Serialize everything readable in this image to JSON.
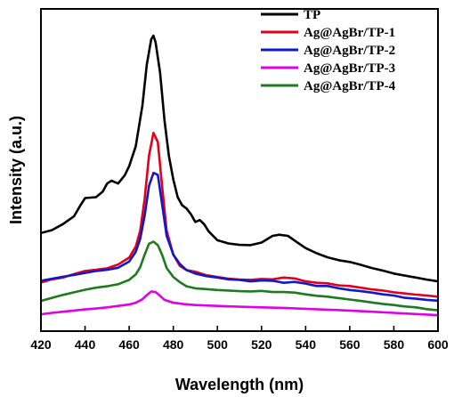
{
  "chart_data": {
    "type": "line",
    "title": "",
    "xlabel": "Wavelength (nm)",
    "ylabel": "Intensity (a.u.)",
    "xlim": [
      420,
      600
    ],
    "ylim": [
      0,
      100
    ],
    "x_ticks": [
      420,
      440,
      460,
      480,
      500,
      520,
      540,
      560,
      580,
      600
    ],
    "y_ticks": [],
    "grid": false,
    "legend_position": "top-right",
    "series": [
      {
        "name": "TP",
        "color": "#000000",
        "points": [
          [
            420,
            29.3
          ],
          [
            425,
            30.3
          ],
          [
            430,
            32.4
          ],
          [
            435,
            35.1
          ],
          [
            438,
            39.0
          ],
          [
            440,
            41.4
          ],
          [
            445,
            41.7
          ],
          [
            448,
            43.6
          ],
          [
            450,
            46.4
          ],
          [
            452,
            47.4
          ],
          [
            455,
            46.4
          ],
          [
            458,
            49.3
          ],
          [
            460,
            52.4
          ],
          [
            463,
            59.3
          ],
          [
            466,
            73.4
          ],
          [
            468,
            87.5
          ],
          [
            470,
            96.3
          ],
          [
            471,
            97.5
          ],
          [
            472,
            95.2
          ],
          [
            474,
            84.8
          ],
          [
            476,
            68.2
          ],
          [
            478,
            56.0
          ],
          [
            480,
            47.8
          ],
          [
            482,
            41.7
          ],
          [
            484,
            38.9
          ],
          [
            486,
            37.8
          ],
          [
            488,
            35.8
          ],
          [
            490,
            33.1
          ],
          [
            492,
            33.8
          ],
          [
            494,
            32.3
          ],
          [
            496,
            29.9
          ],
          [
            500,
            26.8
          ],
          [
            505,
            25.7
          ],
          [
            510,
            25.2
          ],
          [
            515,
            25.1
          ],
          [
            520,
            26.0
          ],
          [
            525,
            28.3
          ],
          [
            528,
            28.7
          ],
          [
            532,
            28.3
          ],
          [
            536,
            26.2
          ],
          [
            540,
            24.1
          ],
          [
            545,
            22.3
          ],
          [
            550,
            20.9
          ],
          [
            555,
            19.9
          ],
          [
            560,
            19.3
          ],
          [
            565,
            18.3
          ],
          [
            570,
            17.2
          ],
          [
            575,
            16.3
          ],
          [
            580,
            15.3
          ],
          [
            585,
            14.6
          ],
          [
            590,
            13.9
          ],
          [
            595,
            13.2
          ],
          [
            600,
            12.6
          ]
        ]
      },
      {
        "name": "Ag@AgBr/TP-1",
        "color": "#e3001b",
        "points": [
          [
            420,
            12.2
          ],
          [
            425,
            13.3
          ],
          [
            430,
            13.9
          ],
          [
            435,
            15.1
          ],
          [
            440,
            16.2
          ],
          [
            445,
            16.6
          ],
          [
            450,
            17.1
          ],
          [
            455,
            18.4
          ],
          [
            460,
            20.8
          ],
          [
            463,
            24.6
          ],
          [
            465,
            30.1
          ],
          [
            467,
            41.1
          ],
          [
            469,
            56.1
          ],
          [
            471,
            63.9
          ],
          [
            473,
            60.7
          ],
          [
            475,
            44.8
          ],
          [
            477,
            30.1
          ],
          [
            480,
            21.8
          ],
          [
            483,
            17.9
          ],
          [
            486,
            16.5
          ],
          [
            490,
            15.9
          ],
          [
            495,
            14.7
          ],
          [
            500,
            14.1
          ],
          [
            505,
            13.5
          ],
          [
            510,
            13.2
          ],
          [
            515,
            13.1
          ],
          [
            520,
            13.4
          ],
          [
            525,
            13.3
          ],
          [
            530,
            13.9
          ],
          [
            535,
            13.6
          ],
          [
            540,
            12.6
          ],
          [
            545,
            12.1
          ],
          [
            550,
            11.9
          ],
          [
            555,
            11.2
          ],
          [
            560,
            11.0
          ],
          [
            565,
            10.4
          ],
          [
            570,
            9.8
          ],
          [
            575,
            9.4
          ],
          [
            580,
            8.8
          ],
          [
            585,
            8.4
          ],
          [
            590,
            8.0
          ],
          [
            595,
            7.7
          ],
          [
            600,
            7.3
          ]
        ]
      },
      {
        "name": "Ag@AgBr/TP-2",
        "color": "#1018c9",
        "points": [
          [
            420,
            12.8
          ],
          [
            425,
            13.5
          ],
          [
            430,
            14.2
          ],
          [
            435,
            14.8
          ],
          [
            440,
            15.5
          ],
          [
            445,
            16.2
          ],
          [
            450,
            16.6
          ],
          [
            455,
            17.3
          ],
          [
            460,
            19.4
          ],
          [
            463,
            22.8
          ],
          [
            465,
            27.3
          ],
          [
            467,
            35.3
          ],
          [
            469,
            45.6
          ],
          [
            471,
            50.1
          ],
          [
            473,
            49.4
          ],
          [
            475,
            38.8
          ],
          [
            477,
            28.3
          ],
          [
            480,
            21.8
          ],
          [
            483,
            18.6
          ],
          [
            486,
            16.5
          ],
          [
            490,
            15.3
          ],
          [
            495,
            14.4
          ],
          [
            500,
            13.9
          ],
          [
            505,
            13.3
          ],
          [
            510,
            13.1
          ],
          [
            515,
            12.6
          ],
          [
            520,
            12.9
          ],
          [
            525,
            12.8
          ],
          [
            530,
            12.1
          ],
          [
            535,
            12.4
          ],
          [
            540,
            11.8
          ],
          [
            545,
            11.0
          ],
          [
            550,
            11.0
          ],
          [
            555,
            10.2
          ],
          [
            560,
            9.6
          ],
          [
            565,
            9.2
          ],
          [
            570,
            8.7
          ],
          [
            575,
            8.1
          ],
          [
            580,
            7.7
          ],
          [
            585,
            6.9
          ],
          [
            590,
            6.6
          ],
          [
            595,
            6.2
          ],
          [
            600,
            5.9
          ]
        ]
      },
      {
        "name": "Ag@AgBr/TP-3",
        "color": "#e000e6",
        "points": [
          [
            420,
            1.2
          ],
          [
            425,
            1.7
          ],
          [
            430,
            2.1
          ],
          [
            435,
            2.5
          ],
          [
            440,
            2.9
          ],
          [
            445,
            3.2
          ],
          [
            450,
            3.6
          ],
          [
            455,
            4.1
          ],
          [
            460,
            4.6
          ],
          [
            463,
            5.2
          ],
          [
            466,
            6.4
          ],
          [
            468,
            7.8
          ],
          [
            470,
            9.1
          ],
          [
            472,
            8.9
          ],
          [
            474,
            7.6
          ],
          [
            476,
            6.2
          ],
          [
            480,
            5.2
          ],
          [
            485,
            4.7
          ],
          [
            490,
            4.4
          ],
          [
            500,
            4.1
          ],
          [
            510,
            3.8
          ],
          [
            520,
            3.6
          ],
          [
            530,
            3.4
          ],
          [
            540,
            3.1
          ],
          [
            550,
            2.8
          ],
          [
            560,
            2.5
          ],
          [
            570,
            2.1
          ],
          [
            580,
            1.7
          ],
          [
            590,
            1.3
          ],
          [
            600,
            0.9
          ]
        ]
      },
      {
        "name": "Ag@AgBr/TP-4",
        "color": "#1e7a1e",
        "points": [
          [
            420,
            5.8
          ],
          [
            425,
            6.9
          ],
          [
            430,
            7.9
          ],
          [
            435,
            8.8
          ],
          [
            440,
            9.7
          ],
          [
            445,
            10.4
          ],
          [
            450,
            10.9
          ],
          [
            455,
            11.6
          ],
          [
            460,
            13.1
          ],
          [
            463,
            15.0
          ],
          [
            465,
            17.5
          ],
          [
            467,
            21.8
          ],
          [
            469,
            25.6
          ],
          [
            471,
            26.3
          ],
          [
            473,
            25.1
          ],
          [
            475,
            21.6
          ],
          [
            477,
            17.2
          ],
          [
            480,
            14.1
          ],
          [
            483,
            12.3
          ],
          [
            486,
            10.9
          ],
          [
            490,
            10.2
          ],
          [
            495,
            9.9
          ],
          [
            500,
            9.6
          ],
          [
            505,
            9.4
          ],
          [
            510,
            9.2
          ],
          [
            515,
            9.1
          ],
          [
            520,
            9.3
          ],
          [
            525,
            8.9
          ],
          [
            530,
            8.9
          ],
          [
            535,
            8.7
          ],
          [
            540,
            8.1
          ],
          [
            545,
            7.6
          ],
          [
            550,
            7.3
          ],
          [
            555,
            6.8
          ],
          [
            560,
            6.3
          ],
          [
            565,
            5.8
          ],
          [
            570,
            5.3
          ],
          [
            575,
            4.8
          ],
          [
            580,
            4.4
          ],
          [
            585,
            3.9
          ],
          [
            590,
            3.6
          ],
          [
            595,
            3.0
          ],
          [
            600,
            2.6
          ]
        ]
      }
    ]
  }
}
